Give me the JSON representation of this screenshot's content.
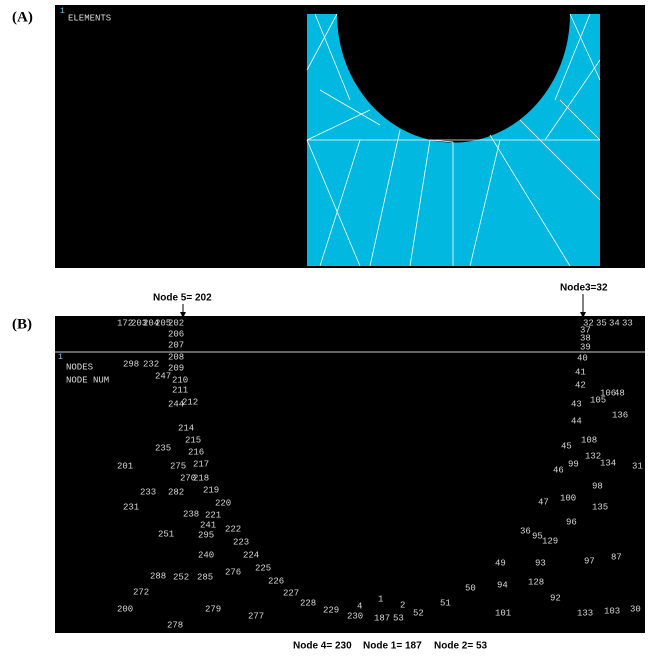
{
  "panel_a": {
    "label": "(A)",
    "screen": {
      "index": "1",
      "title": "ELEMENTS"
    }
  },
  "panel_b": {
    "label": "(B)",
    "screen": {
      "index": "1",
      "title": "NODES",
      "subtitle": "NODE NUM"
    },
    "annotations": {
      "top_left": "Node 5= 202",
      "top_right": "Node3=32",
      "bottom": [
        "Node 4= 230",
        "Node 1= 187",
        "Node 2= 53"
      ]
    },
    "node_numbers": [
      "172",
      "203",
      "204",
      "205",
      "202",
      "206",
      "207",
      "208",
      "209",
      "210",
      "211",
      "298",
      "232",
      "247",
      "244",
      "212",
      "214",
      "215",
      "216",
      "235",
      "201",
      "275",
      "217",
      "270",
      "218",
      "233",
      "282",
      "219",
      "220",
      "231",
      "238",
      "221",
      "241",
      "222",
      "251",
      "295",
      "223",
      "240",
      "224",
      "225",
      "276",
      "288",
      "252",
      "285",
      "226",
      "272",
      "227",
      "279",
      "228",
      "200",
      "229",
      "277",
      "278",
      "230",
      "4",
      "1",
      "187",
      "53",
      "2",
      "52",
      "51",
      "50",
      "101",
      "49",
      "94",
      "93",
      "128",
      "92",
      "133",
      "103",
      "30",
      "97",
      "87",
      "36",
      "95",
      "129",
      "96",
      "47",
      "100",
      "135",
      "98",
      "46",
      "99",
      "134",
      "31",
      "132",
      "45",
      "108",
      "44",
      "136",
      "43",
      "105",
      "106",
      "48",
      "42",
      "41",
      "40",
      "39",
      "38",
      "37",
      "32",
      "35",
      "34",
      "33"
    ]
  }
}
